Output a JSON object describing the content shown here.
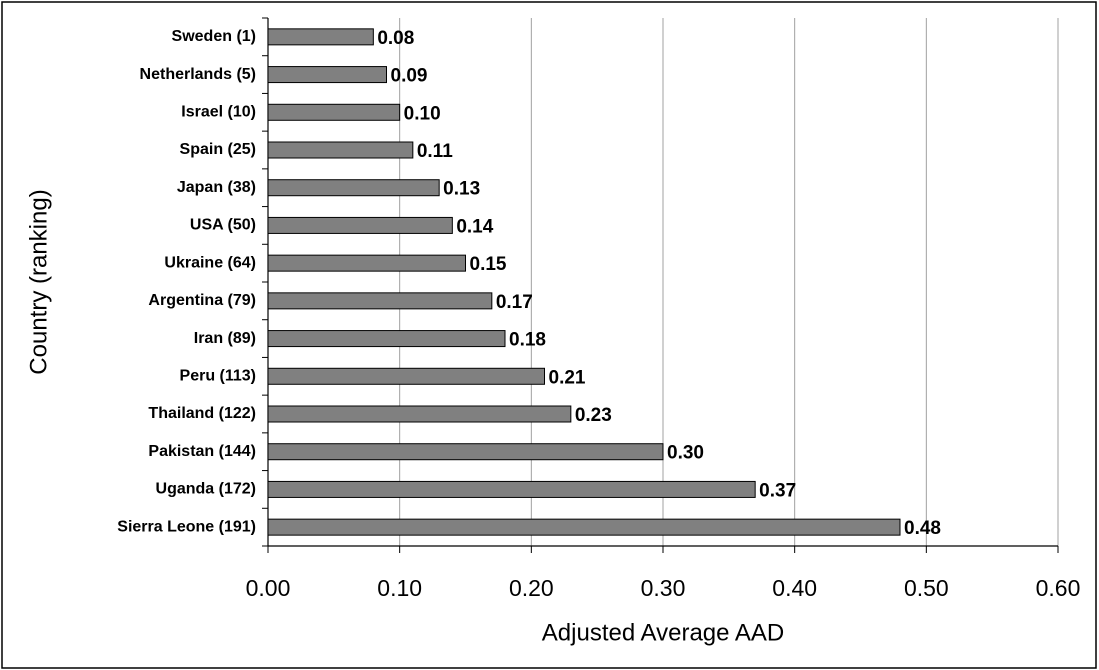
{
  "chart_data": {
    "type": "bar",
    "orientation": "horizontal",
    "x_label": "Adjusted Average AAD",
    "y_label": "Country (ranking)",
    "categories": [
      "Sweden (1)",
      "Netherlands (5)",
      "Israel (10)",
      "Spain (25)",
      "Japan (38)",
      "USA (50)",
      "Ukraine (64)",
      "Argentina (79)",
      "Iran (89)",
      "Peru (113)",
      "Thailand (122)",
      "Pakistan (144)",
      "Uganda (172)",
      "Sierra Leone (191)"
    ],
    "values": [
      0.08,
      0.09,
      0.1,
      0.11,
      0.13,
      0.14,
      0.15,
      0.17,
      0.18,
      0.21,
      0.23,
      0.3,
      0.37,
      0.48
    ],
    "value_labels": [
      "0.08",
      "0.09",
      "0.10",
      "0.11",
      "0.13",
      "0.14",
      "0.15",
      "0.17",
      "0.18",
      "0.21",
      "0.23",
      "0.30",
      "0.37",
      "0.48"
    ],
    "color": "#808080",
    "xlim": [
      0,
      0.6
    ],
    "xticks": [
      {
        "value": 0,
        "label": "0.00"
      },
      {
        "value": 0.1,
        "label": "0.10"
      },
      {
        "value": 0.2,
        "label": "0.20"
      },
      {
        "value": 0.3,
        "label": "0.30"
      },
      {
        "value": 0.4,
        "label": "0.40"
      },
      {
        "value": 0.5,
        "label": "0.50"
      },
      {
        "value": 0.6,
        "label": "0.60"
      }
    ],
    "grid": true
  }
}
